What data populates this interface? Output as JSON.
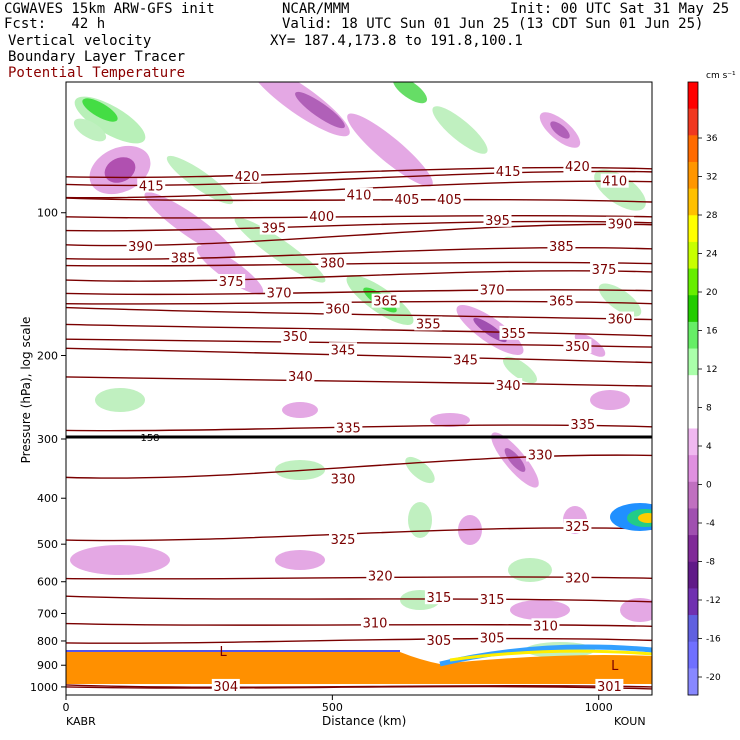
{
  "header": {
    "model": "CGWAVES 15km ARW-GFS init",
    "org": "NCAR/MMM",
    "init": "Init: 00 UTC Sat 31 May 25",
    "fcst": "Fcst:   42 h",
    "valid": "Valid: 18 UTC Sun 01 Jun 25 (13 CDT Sun 01 Jun 25)",
    "xy": "XY= 187.4,173.8 to 191.8,100.1",
    "field1": "Vertical velocity",
    "field2": "Boundary Layer Tracer",
    "field3": "Potential Temperature"
  },
  "stations": {
    "left": "KABR",
    "right": "KOUN"
  },
  "colorbar": {
    "units": "cm s⁻¹",
    "labels": [
      "36",
      "32",
      "28",
      "24",
      "20",
      "16",
      "12",
      "8",
      "4",
      "0",
      "-4",
      "-8",
      "-12",
      "-16",
      "-20"
    ],
    "colors": [
      "#ff0000",
      "#f03820",
      "#ff6a00",
      "#ff9600",
      "#ffc000",
      "#ffff00",
      "#c8ff00",
      "#66ee00",
      "#22cc00",
      "#66ee66",
      "#aaffaa",
      "#ffffff",
      "#ffffff",
      "#f0b8f0",
      "#e090e0",
      "#c070c0",
      "#a050b0",
      "#802a98",
      "#601a88",
      "#7030b0",
      "#6060e0",
      "#7070ff",
      "#8888ff"
    ]
  },
  "chart_data": {
    "type": "contour-cross-section",
    "xlabel": "Distance (km)",
    "ylabel": "Pressure (hPa), log scale",
    "xlim": [
      0,
      1100
    ],
    "x_ticks": [
      0,
      500,
      1000
    ],
    "y_ticks": [
      100,
      200,
      300,
      400,
      500,
      600,
      700,
      800,
      900,
      1000
    ],
    "tropopause_label": "158",
    "isentropes": [
      {
        "value": 415,
        "labels": [
          {
            "x": 160,
            "p": 88
          },
          {
            "x": 830,
            "p": 82
          }
        ]
      },
      {
        "value": 420,
        "labels": [
          {
            "x": 340,
            "p": 84
          },
          {
            "x": 960,
            "p": 80
          }
        ]
      },
      {
        "value": 410,
        "labels": [
          {
            "x": 550,
            "p": 92
          },
          {
            "x": 1030,
            "p": 86
          }
        ]
      },
      {
        "value": 405,
        "labels": [
          {
            "x": 640,
            "p": 94
          },
          {
            "x": 720,
            "p": 94
          }
        ]
      },
      {
        "value": 400,
        "labels": [
          {
            "x": 480,
            "p": 102
          }
        ]
      },
      {
        "value": 395,
        "labels": [
          {
            "x": 390,
            "p": 108
          },
          {
            "x": 810,
            "p": 104
          }
        ]
      },
      {
        "value": 390,
        "labels": [
          {
            "x": 140,
            "p": 118
          },
          {
            "x": 1040,
            "p": 106
          }
        ]
      },
      {
        "value": 385,
        "labels": [
          {
            "x": 220,
            "p": 125
          },
          {
            "x": 930,
            "p": 118
          }
        ]
      },
      {
        "value": 380,
        "labels": [
          {
            "x": 500,
            "p": 128
          }
        ]
      },
      {
        "value": 375,
        "labels": [
          {
            "x": 310,
            "p": 140
          },
          {
            "x": 1010,
            "p": 132
          }
        ]
      },
      {
        "value": 370,
        "labels": [
          {
            "x": 400,
            "p": 148
          },
          {
            "x": 800,
            "p": 146
          }
        ]
      },
      {
        "value": 365,
        "labels": [
          {
            "x": 600,
            "p": 154
          },
          {
            "x": 930,
            "p": 154
          }
        ]
      },
      {
        "value": 360,
        "labels": [
          {
            "x": 510,
            "p": 160
          },
          {
            "x": 1040,
            "p": 168
          }
        ]
      },
      {
        "value": 355,
        "labels": [
          {
            "x": 680,
            "p": 172
          },
          {
            "x": 840,
            "p": 180
          }
        ]
      },
      {
        "value": 350,
        "labels": [
          {
            "x": 430,
            "p": 183
          },
          {
            "x": 960,
            "p": 192
          }
        ]
      },
      {
        "value": 345,
        "labels": [
          {
            "x": 520,
            "p": 195
          },
          {
            "x": 750,
            "p": 205
          }
        ]
      },
      {
        "value": 340,
        "labels": [
          {
            "x": 440,
            "p": 222
          },
          {
            "x": 830,
            "p": 232
          }
        ]
      },
      {
        "value": 335,
        "labels": [
          {
            "x": 530,
            "p": 285
          },
          {
            "x": 970,
            "p": 280
          }
        ]
      },
      {
        "value": 330,
        "labels": [
          {
            "x": 520,
            "p": 365
          },
          {
            "x": 890,
            "p": 325
          }
        ]
      },
      {
        "value": 325,
        "labels": [
          {
            "x": 520,
            "p": 490
          },
          {
            "x": 960,
            "p": 460
          }
        ]
      },
      {
        "value": 320,
        "labels": [
          {
            "x": 590,
            "p": 585
          },
          {
            "x": 960,
            "p": 590
          }
        ]
      },
      {
        "value": 315,
        "labels": [
          {
            "x": 700,
            "p": 650
          },
          {
            "x": 800,
            "p": 655
          }
        ]
      },
      {
        "value": 310,
        "labels": [
          {
            "x": 580,
            "p": 735
          },
          {
            "x": 900,
            "p": 745
          }
        ]
      },
      {
        "value": 305,
        "labels": [
          {
            "x": 700,
            "p": 800
          },
          {
            "x": 800,
            "p": 790
          }
        ]
      },
      {
        "value": 304,
        "labels": [
          {
            "x": 300,
            "p": 1000
          }
        ]
      },
      {
        "value": 301,
        "labels": [
          {
            "x": 1020,
            "p": 1000
          }
        ]
      }
    ],
    "lows": [
      {
        "label": "L",
        "x": 295,
        "p": 860
      },
      {
        "label": "L",
        "x": 1030,
        "p": 920
      }
    ]
  }
}
